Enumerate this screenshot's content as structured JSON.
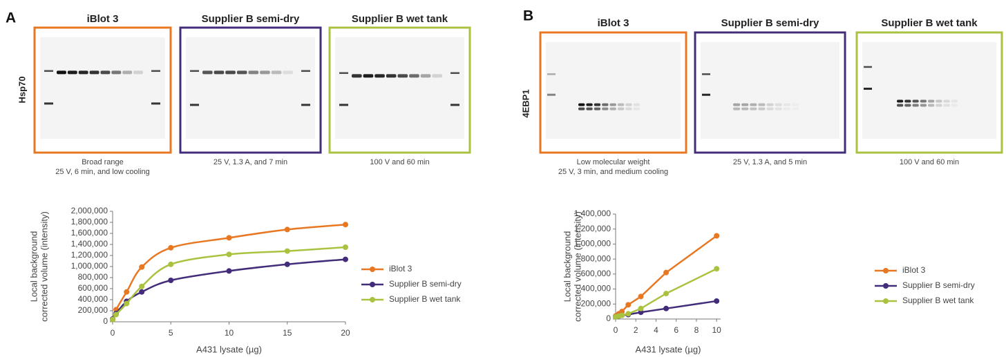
{
  "panels": [
    {
      "letter": "A",
      "protein": "Hsp70",
      "blots": [
        {
          "title": "iBlot 3",
          "caption": [
            "Broad range",
            "25 V, 6 min, and low cooling"
          ]
        },
        {
          "title": "Supplier B semi-dry",
          "caption": [
            "25 V, 1.3 A, and 7 min"
          ]
        },
        {
          "title": "Supplier B wet tank",
          "caption": [
            "100 V and  60 min"
          ]
        }
      ]
    },
    {
      "letter": "B",
      "protein": "4EBP1",
      "blots": [
        {
          "title": "iBlot 3",
          "caption": [
            "Low molecular weight",
            "25 V, 3 min, and medium cooling"
          ]
        },
        {
          "title": "Supplier B semi-dry",
          "caption": [
            "25 V, 1.3 A, and 5 min"
          ]
        },
        {
          "title": "Supplier B wet tank",
          "caption": [
            "100 V and 60 min"
          ]
        }
      ]
    }
  ],
  "chart_data": [
    {
      "type": "line",
      "smooth": true,
      "x_label": "A431 lysate (µg)",
      "y_label": [
        "Local background",
        "corrected volume (intensity)"
      ],
      "x": [
        0,
        0.3,
        1.2,
        2.5,
        5,
        10,
        15,
        20
      ],
      "series": [
        {
          "name": "iBlot 3",
          "color": "#e87722",
          "values": [
            40000,
            220000,
            540000,
            990000,
            1340000,
            1520000,
            1670000,
            1760000
          ]
        },
        {
          "name": "Supplier B semi-dry",
          "color": "#432c7a",
          "values": [
            50000,
            150000,
            370000,
            540000,
            750000,
            920000,
            1040000,
            1130000
          ]
        },
        {
          "name": "Supplier B wet tank",
          "color": "#a9c23f",
          "values": [
            40000,
            130000,
            330000,
            640000,
            1040000,
            1220000,
            1280000,
            1350000
          ]
        }
      ],
      "xlim": [
        0,
        20
      ],
      "xticks": [
        0,
        5,
        10,
        15,
        20
      ],
      "ylim": [
        0,
        2000000
      ],
      "yticks": [
        0,
        {
          "value": 200000,
          "label": "200,000"
        },
        {
          "value": 400000,
          "label": "400,000"
        },
        {
          "value": 600000,
          "label": "600,000"
        },
        {
          "value": 800000,
          "label": "800,000"
        },
        {
          "value": 1000000,
          "label": "1,000,000"
        },
        {
          "value": 1200000,
          "label": "1,200,000"
        },
        {
          "value": 1400000,
          "label": "1,400,000"
        },
        {
          "value": 1600000,
          "label": "1,600,000"
        },
        {
          "value": 1800000,
          "label": "1,800,000"
        },
        {
          "value": 2000000,
          "label": "2,000,000"
        }
      ],
      "legend": "right"
    },
    {
      "type": "line",
      "smooth": false,
      "x_label": "A431 lysate (µg)",
      "y_label": [
        "Local background",
        "corrected volume (intensity)"
      ],
      "x": [
        0,
        0.3125,
        0.625,
        1.25,
        2.5,
        5,
        10
      ],
      "series": [
        {
          "name": "iBlot 3",
          "color": "#e87722",
          "values": [
            40000,
            70000,
            100000,
            190000,
            300000,
            620000,
            1110000
          ]
        },
        {
          "name": "Supplier B semi-dry",
          "color": "#432c7a",
          "values": [
            30000,
            40000,
            50000,
            60000,
            90000,
            140000,
            240000
          ]
        },
        {
          "name": "Supplier B wet tank",
          "color": "#a9c23f",
          "values": [
            30000,
            40000,
            50000,
            70000,
            140000,
            340000,
            670000
          ]
        }
      ],
      "xlim": [
        0,
        10.4
      ],
      "xticks": [
        0,
        2,
        4,
        6,
        8,
        10
      ],
      "ylim": [
        0,
        1400000
      ],
      "yticks": [
        0,
        {
          "value": 200000,
          "label": "200,000"
        },
        {
          "value": 400000,
          "label": "400,000"
        },
        {
          "value": 600000,
          "label": "600,000"
        },
        {
          "value": 800000,
          "label": "800,000"
        },
        {
          "value": 1000000,
          "label": "1,000,000"
        },
        {
          "value": 1200000,
          "label": "1,200,000"
        },
        {
          "value": 1400000,
          "label": "1,400,000"
        }
      ],
      "legend": "right"
    }
  ]
}
